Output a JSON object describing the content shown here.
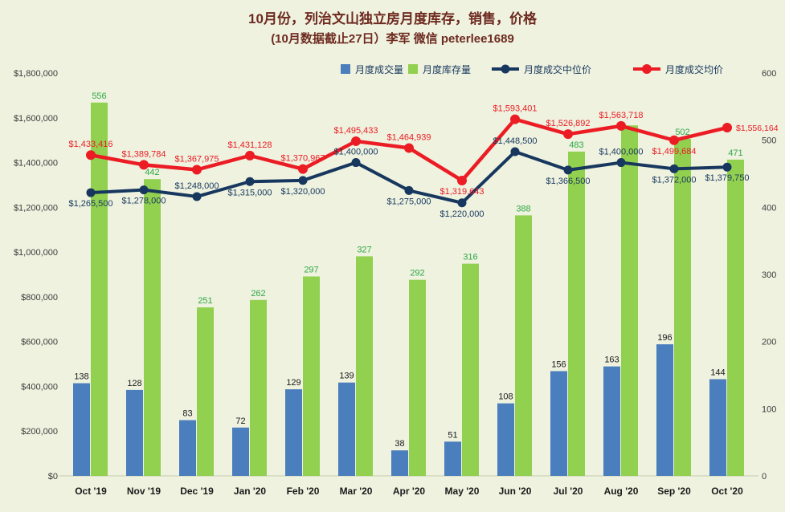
{
  "header": {
    "title_line1": "10月份，列治文山独立房月度库存，销售，价格",
    "title_line2": "(10月数据截止27日）李军 微信 peterlee1689"
  },
  "chart_data": {
    "type": "bar",
    "subtype": "combo-bar-line",
    "categories": [
      "Oct '19",
      "Nov '19",
      "Dec '19",
      "Jan '20",
      "Feb '20",
      "Mar '20",
      "Apr '20",
      "May '20",
      "Jun '20",
      "Jul '20",
      "Aug '20",
      "Sep '20",
      "Oct '20"
    ],
    "series": [
      {
        "name": "月度成交量",
        "kind": "bar",
        "axis": "right",
        "color": "#4a7ebd",
        "values": [
          138,
          128,
          83,
          72,
          129,
          139,
          38,
          51,
          108,
          156,
          163,
          196,
          144
        ]
      },
      {
        "name": "月度库存量",
        "kind": "bar",
        "axis": "right",
        "color": "#92d050",
        "label_color": "#2fa845",
        "values": [
          556,
          442,
          251,
          262,
          297,
          327,
          292,
          316,
          388,
          483,
          522,
          502,
          471
        ]
      },
      {
        "name": "月度成交中位价",
        "kind": "line",
        "axis": "left",
        "color": "#17375e",
        "values": [
          1265500,
          1278000,
          1248000,
          1315000,
          1320000,
          1400000,
          1275000,
          1220000,
          1448500,
          1366500,
          1400000,
          1372000,
          1379750
        ]
      },
      {
        "name": "月度成交均价",
        "kind": "line",
        "axis": "left",
        "color": "#ec1c24",
        "values": [
          1433416,
          1389784,
          1367975,
          1431128,
          1370967,
          1495433,
          1464939,
          1319643,
          1593401,
          1526892,
          1563718,
          1499684,
          1556164
        ]
      }
    ],
    "left_axis": {
      "min": 0,
      "max": 1800000,
      "step": 200000,
      "format": "$#,##0"
    },
    "right_axis": {
      "min": 0,
      "max": 600,
      "step": 100
    },
    "legend_position": "top",
    "grid": false
  }
}
